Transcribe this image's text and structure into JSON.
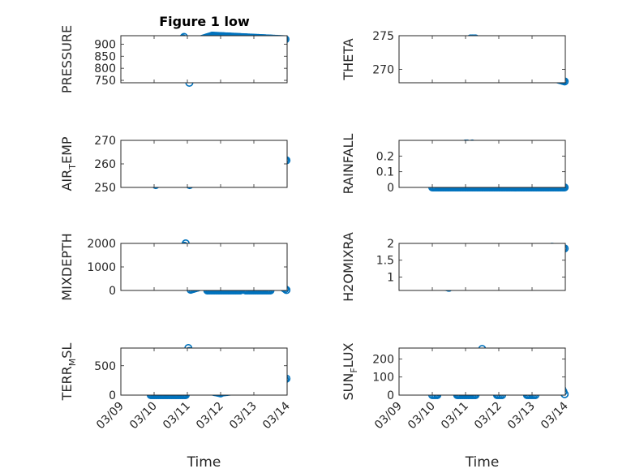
{
  "figure": {
    "title": "Figure 1 low",
    "marker_color": "#0072BD"
  },
  "chart_data": [
    {
      "type": "scatter",
      "ylabel": "PRESSURE",
      "title": "Figure 1 low",
      "xlim": [
        0,
        5
      ],
      "ylim": [
        740,
        935
      ],
      "yticks": [
        750,
        800,
        850,
        900
      ],
      "ytick_labels": [
        "750",
        "800",
        "850",
        "900"
      ],
      "xticks": [],
      "xtick_labels": [],
      "grid": true,
      "segments": [
        {
          "x0": 0.88,
          "x1": 1.09,
          "y0": 765,
          "y1": 760,
          "n": 6
        },
        {
          "x0": 1.1,
          "x1": 1.75,
          "y0": 770,
          "y1": 910,
          "n": 20
        },
        {
          "x0": 1.75,
          "x1": 1.9,
          "y0": 910,
          "y1": 930,
          "n": 5
        },
        {
          "x0": 1.93,
          "x1": 2.0,
          "y0": 895,
          "y1": 850,
          "n": 4
        },
        {
          "x0": 2.03,
          "x1": 2.06,
          "y0": 820,
          "y1": 740,
          "n": 3
        },
        {
          "x0": 2.08,
          "x1": 2.4,
          "y0": 800,
          "y1": 920,
          "n": 10
        },
        {
          "x0": 2.4,
          "x1": 2.75,
          "y0": 920,
          "y1": 935,
          "n": 10
        },
        {
          "x0": 2.75,
          "x1": 4.95,
          "y0": 935,
          "y1": 920,
          "n": 60
        }
      ]
    },
    {
      "type": "scatter",
      "ylabel": "THETA",
      "xlim": [
        0,
        5
      ],
      "ylim": [
        268,
        275
      ],
      "yticks": [
        270,
        275
      ],
      "ytick_labels": [
        "270",
        "275"
      ],
      "xticks": [],
      "xtick_labels": [],
      "grid": true,
      "segments": [
        {
          "x0": 1.2,
          "x1": 1.35,
          "y0": 273.6,
          "y1": 272.5,
          "n": 5
        },
        {
          "x0": 1.35,
          "x1": 1.8,
          "y0": 272.4,
          "y1": 272.0,
          "n": 12
        },
        {
          "x0": 1.8,
          "x1": 1.85,
          "y0": 271.5,
          "y1": 270.5,
          "n": 3
        },
        {
          "x0": 1.87,
          "x1": 2.1,
          "y0": 271.5,
          "y1": 273.3,
          "n": 7
        },
        {
          "x0": 2.15,
          "x1": 2.3,
          "y0": 274.6,
          "y1": 274.6,
          "n": 4
        },
        {
          "x0": 2.3,
          "x1": 3.5,
          "y0": 274.2,
          "y1": 272.0,
          "n": 32
        },
        {
          "x0": 3.5,
          "x1": 4.7,
          "y0": 271.8,
          "y1": 268.7,
          "n": 32
        },
        {
          "x0": 4.7,
          "x1": 4.98,
          "y0": 268.6,
          "y1": 268.2,
          "n": 8
        }
      ]
    },
    {
      "type": "scatter",
      "ylabel": "AIR_TEMP",
      "xlim": [
        0,
        5
      ],
      "ylim": [
        250,
        270
      ],
      "yticks": [
        250,
        260,
        270
      ],
      "ytick_labels": [
        "250",
        "260",
        "270"
      ],
      "xticks": [],
      "xtick_labels": [],
      "grid": true,
      "segments": [
        {
          "x0": 0.88,
          "x1": 1.05,
          "y0": 253,
          "y1": 251,
          "n": 5
        },
        {
          "x0": 1.05,
          "x1": 1.75,
          "y0": 251.5,
          "y1": 264,
          "n": 20
        },
        {
          "x0": 1.75,
          "x1": 1.95,
          "y0": 264,
          "y1": 268,
          "n": 6
        },
        {
          "x0": 1.96,
          "x1": 2.04,
          "y0": 266,
          "y1": 259,
          "n": 4
        },
        {
          "x0": 2.05,
          "x1": 2.07,
          "y0": 256,
          "y1": 251,
          "n": 2
        },
        {
          "x0": 2.08,
          "x1": 2.45,
          "y0": 258,
          "y1": 264,
          "n": 10
        },
        {
          "x0": 2.45,
          "x1": 2.85,
          "y0": 264,
          "y1": 268,
          "n": 10
        },
        {
          "x0": 2.85,
          "x1": 4.3,
          "y0": 267.5,
          "y1": 265.5,
          "n": 40
        },
        {
          "x0": 4.3,
          "x1": 4.98,
          "y0": 265.5,
          "y1": 261.5,
          "n": 18
        }
      ]
    },
    {
      "type": "scatter",
      "ylabel": "RAINFALL",
      "xlim": [
        0,
        5
      ],
      "ylim": [
        0,
        0.3
      ],
      "yticks": [
        0,
        0.1,
        0.2
      ],
      "ytick_labels": [
        "0",
        "0.1",
        "0.2"
      ],
      "xticks": [],
      "xtick_labels": [],
      "grid": true,
      "segments": [
        {
          "x0": 1.0,
          "x1": 4.98,
          "y0": 0,
          "y1": 0,
          "n": 110
        },
        {
          "x0": 2.0,
          "x1": 2.05,
          "y0": 0.28,
          "y1": 0.28,
          "n": 2
        },
        {
          "x0": 2.2,
          "x1": 2.22,
          "y0": 0.28,
          "y1": 0.28,
          "n": 1
        }
      ]
    },
    {
      "type": "scatter",
      "ylabel": "MIXDEPTH",
      "xlim": [
        0,
        5
      ],
      "ylim": [
        0,
        2000
      ],
      "yticks": [
        0,
        1000,
        2000
      ],
      "ytick_labels": [
        "0",
        "1000",
        "2000"
      ],
      "xticks": [],
      "xtick_labels": [],
      "grid": true,
      "segments": [
        {
          "x0": 0.88,
          "x1": 1.1,
          "y0": 1100,
          "y1": 700,
          "n": 6
        },
        {
          "x0": 1.1,
          "x1": 1.25,
          "y0": 650,
          "y1": 300,
          "n": 4
        },
        {
          "x0": 1.3,
          "x1": 1.5,
          "y0": 600,
          "y1": 800,
          "n": 5
        },
        {
          "x0": 1.5,
          "x1": 1.95,
          "y0": 900,
          "y1": 2000,
          "n": 12
        },
        {
          "x0": 1.96,
          "x1": 2.02,
          "y0": 1700,
          "y1": 1200,
          "n": 3
        },
        {
          "x0": 2.03,
          "x1": 2.1,
          "y0": 500,
          "y1": 30,
          "n": 3
        },
        {
          "x0": 2.1,
          "x1": 2.6,
          "y0": 30,
          "y1": 250,
          "n": 12
        },
        {
          "x0": 2.6,
          "x1": 3.6,
          "y0": 0,
          "y1": 0,
          "n": 28
        },
        {
          "x0": 3.6,
          "x1": 3.75,
          "y0": 100,
          "y1": 250,
          "n": 4
        },
        {
          "x0": 3.75,
          "x1": 4.5,
          "y0": 0,
          "y1": 0,
          "n": 20
        },
        {
          "x0": 4.5,
          "x1": 4.7,
          "y0": 150,
          "y1": 420,
          "n": 6
        },
        {
          "x0": 4.7,
          "x1": 4.98,
          "y0": 300,
          "y1": 20,
          "n": 8
        }
      ]
    },
    {
      "type": "scatter",
      "ylabel": "H2OMIXRA",
      "xlim": [
        0,
        5
      ],
      "ylim": [
        0.6,
        2.0
      ],
      "yticks": [
        1,
        1.5,
        2
      ],
      "ytick_labels": [
        "1",
        "1.5",
        "2"
      ],
      "xticks": [],
      "xtick_labels": [],
      "grid": true,
      "segments": [
        {
          "x0": 1.0,
          "x1": 1.5,
          "y0": 0.8,
          "y1": 0.68,
          "n": 10
        },
        {
          "x0": 1.5,
          "x1": 1.75,
          "y0": 0.75,
          "y1": 0.9,
          "n": 5
        },
        {
          "x0": 1.75,
          "x1": 1.9,
          "y0": 1.3,
          "y1": 1.6,
          "n": 4
        },
        {
          "x0": 1.9,
          "x1": 2.2,
          "y0": 1.6,
          "y1": 1.75,
          "n": 8
        },
        {
          "x0": 2.22,
          "x1": 2.35,
          "y0": 0.9,
          "y1": 1.05,
          "n": 4
        },
        {
          "x0": 2.35,
          "x1": 3.0,
          "y0": 1.1,
          "y1": 1.1,
          "n": 16
        },
        {
          "x0": 3.0,
          "x1": 3.7,
          "y0": 1.5,
          "y1": 1.5,
          "n": 18
        },
        {
          "x0": 3.7,
          "x1": 4.2,
          "y0": 1.6,
          "y1": 1.6,
          "n": 12
        },
        {
          "x0": 4.2,
          "x1": 4.6,
          "y0": 1.7,
          "y1": 1.8,
          "n": 10
        },
        {
          "x0": 4.6,
          "x1": 4.98,
          "y0": 1.9,
          "y1": 1.85,
          "n": 10
        }
      ]
    },
    {
      "type": "scatter",
      "ylabel": "TERR_MSL",
      "xlim": [
        0,
        5
      ],
      "ylim": [
        0,
        800
      ],
      "yticks": [
        0,
        500
      ],
      "ytick_labels": [
        "0",
        "500"
      ],
      "xticks": [
        0,
        1,
        2,
        3,
        4,
        5
      ],
      "xtick_labels": [
        "03/09",
        "03/10",
        "03/11",
        "03/12",
        "03/13",
        "03/14"
      ],
      "xlabel": "Time",
      "grid": true,
      "segments": [
        {
          "x0": 0.9,
          "x1": 1.95,
          "y0": 0,
          "y1": 0,
          "n": 28
        },
        {
          "x0": 1.97,
          "x1": 2.0,
          "y0": 50,
          "y1": 120,
          "n": 2
        },
        {
          "x0": 2.03,
          "x1": 2.08,
          "y0": 800,
          "y1": 700,
          "n": 3
        },
        {
          "x0": 2.1,
          "x1": 2.6,
          "y0": 600,
          "y1": 100,
          "n": 14
        },
        {
          "x0": 2.6,
          "x1": 3.0,
          "y0": 80,
          "y1": 30,
          "n": 10
        },
        {
          "x0": 3.0,
          "x1": 4.5,
          "y0": 40,
          "y1": 150,
          "n": 35
        },
        {
          "x0": 4.5,
          "x1": 4.98,
          "y0": 150,
          "y1": 280,
          "n": 12
        }
      ]
    },
    {
      "type": "scatter",
      "ylabel": "SUN_FLUX",
      "xlim": [
        0,
        5
      ],
      "ylim": [
        0,
        260
      ],
      "yticks": [
        0,
        100,
        200
      ],
      "ytick_labels": [
        "0",
        "100",
        "200"
      ],
      "xticks": [
        0,
        1,
        2,
        3,
        4,
        5
      ],
      "xtick_labels": [
        "03/09",
        "03/10",
        "03/11",
        "03/12",
        "03/13",
        "03/14"
      ],
      "xlabel": "Time",
      "grid": true,
      "segments": [
        {
          "x0": 1.0,
          "x1": 1.15,
          "y0": 0,
          "y1": 0,
          "n": 4
        },
        {
          "x0": 1.15,
          "x1": 1.5,
          "y0": 5,
          "y1": 108,
          "n": 10
        },
        {
          "x0": 1.5,
          "x1": 1.75,
          "y0": 100,
          "y1": 5,
          "n": 8
        },
        {
          "x0": 1.75,
          "x1": 2.3,
          "y0": 0,
          "y1": 0,
          "n": 14
        },
        {
          "x0": 2.3,
          "x1": 2.5,
          "y0": 50,
          "y1": 255,
          "n": 7
        },
        {
          "x0": 2.5,
          "x1": 2.95,
          "y0": 240,
          "y1": 5,
          "n": 14
        },
        {
          "x0": 2.95,
          "x1": 3.1,
          "y0": 0,
          "y1": 0,
          "n": 4
        },
        {
          "x0": 3.1,
          "x1": 3.3,
          "y0": 20,
          "y1": 190,
          "n": 7
        },
        {
          "x0": 3.3,
          "x1": 3.85,
          "y0": 190,
          "y1": 5,
          "n": 16
        },
        {
          "x0": 3.85,
          "x1": 4.1,
          "y0": 0,
          "y1": 0,
          "n": 6
        },
        {
          "x0": 4.1,
          "x1": 4.45,
          "y0": 20,
          "y1": 230,
          "n": 10
        },
        {
          "x0": 4.45,
          "x1": 4.98,
          "y0": 220,
          "y1": 5,
          "n": 16
        }
      ]
    }
  ]
}
